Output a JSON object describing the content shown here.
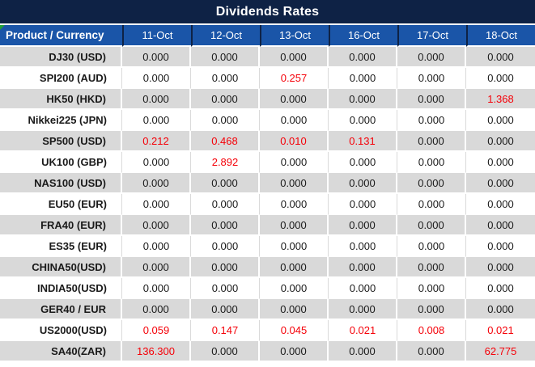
{
  "title": "Dividends Rates",
  "colors": {
    "title_bar": "#0e2245",
    "header_fill": "#1a55a8",
    "header_text": "#ffffff",
    "row_alt_fill": "#d9d9d9",
    "row_fill": "#ffffff",
    "value_text": "#1a1a1a",
    "nonzero_value_text": "#f50008",
    "corner_flag": "#21a038"
  },
  "table": {
    "product_header": "Product / Currency",
    "date_columns": [
      "11-Oct",
      "12-Oct",
      "13-Oct",
      "16-Oct",
      "17-Oct",
      "18-Oct"
    ],
    "rows": [
      {
        "product": "DJ30 (USD)",
        "values": [
          "0.000",
          "0.000",
          "0.000",
          "0.000",
          "0.000",
          "0.000"
        ],
        "highlighted": []
      },
      {
        "product": "SPI200 (AUD)",
        "values": [
          "0.000",
          "0.000",
          "0.257",
          "0.000",
          "0.000",
          "0.000"
        ],
        "highlighted": [
          2
        ]
      },
      {
        "product": "HK50 (HKD)",
        "values": [
          "0.000",
          "0.000",
          "0.000",
          "0.000",
          "0.000",
          "1.368"
        ],
        "highlighted": [
          5
        ]
      },
      {
        "product": "Nikkei225 (JPN)",
        "values": [
          "0.000",
          "0.000",
          "0.000",
          "0.000",
          "0.000",
          "0.000"
        ],
        "highlighted": []
      },
      {
        "product": "SP500 (USD)",
        "values": [
          "0.212",
          "0.468",
          "0.010",
          "0.131",
          "0.000",
          "0.000"
        ],
        "highlighted": [
          0,
          1,
          2,
          3
        ]
      },
      {
        "product": "UK100 (GBP)",
        "values": [
          "0.000",
          "2.892",
          "0.000",
          "0.000",
          "0.000",
          "0.000"
        ],
        "highlighted": [
          1
        ]
      },
      {
        "product": "NAS100 (USD)",
        "values": [
          "0.000",
          "0.000",
          "0.000",
          "0.000",
          "0.000",
          "0.000"
        ],
        "highlighted": []
      },
      {
        "product": "EU50 (EUR)",
        "values": [
          "0.000",
          "0.000",
          "0.000",
          "0.000",
          "0.000",
          "0.000"
        ],
        "highlighted": []
      },
      {
        "product": "FRA40 (EUR)",
        "values": [
          "0.000",
          "0.000",
          "0.000",
          "0.000",
          "0.000",
          "0.000"
        ],
        "highlighted": []
      },
      {
        "product": "ES35 (EUR)",
        "values": [
          "0.000",
          "0.000",
          "0.000",
          "0.000",
          "0.000",
          "0.000"
        ],
        "highlighted": []
      },
      {
        "product": "CHINA50(USD)",
        "values": [
          "0.000",
          "0.000",
          "0.000",
          "0.000",
          "0.000",
          "0.000"
        ],
        "highlighted": []
      },
      {
        "product": "INDIA50(USD)",
        "values": [
          "0.000",
          "0.000",
          "0.000",
          "0.000",
          "0.000",
          "0.000"
        ],
        "highlighted": []
      },
      {
        "product": "GER40 / EUR",
        "values": [
          "0.000",
          "0.000",
          "0.000",
          "0.000",
          "0.000",
          "0.000"
        ],
        "highlighted": []
      },
      {
        "product": "US2000(USD)",
        "values": [
          "0.059",
          "0.147",
          "0.045",
          "0.021",
          "0.008",
          "0.021"
        ],
        "highlighted": [
          0,
          1,
          2,
          3,
          4,
          5
        ]
      },
      {
        "product": "SA40(ZAR)",
        "values": [
          "136.300",
          "0.000",
          "0.000",
          "0.000",
          "0.000",
          "62.775"
        ],
        "highlighted": [
          0,
          5
        ]
      }
    ]
  }
}
